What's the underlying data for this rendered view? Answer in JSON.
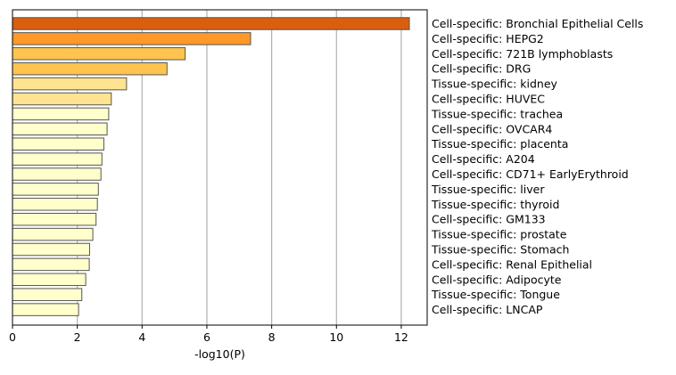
{
  "chart_data": {
    "type": "bar",
    "orientation": "horizontal",
    "title": "",
    "xlabel": "-log10(P)",
    "ylabel": "",
    "xlim": [
      0,
      12.8
    ],
    "xticks": [
      0,
      2,
      4,
      6,
      8,
      10,
      12
    ],
    "grid": "vertical",
    "categories": [
      "Cell-specific: Bronchial Epithelial Cells",
      "Cell-specific: HEPG2",
      "Cell-specific: 721B lymphoblasts",
      "Cell-specific: DRG",
      "Tissue-specific: kidney",
      "Cell-specific: HUVEC",
      "Tissue-specific: trachea",
      "Cell-specific: OVCAR4",
      "Tissue-specific: placenta",
      "Cell-specific: A204",
      "Cell-specific: CD71+ EarlyErythroid",
      "Tissue-specific: liver",
      "Tissue-specific: thyroid",
      "Cell-specific: GM133",
      "Tissue-specific: prostate",
      "Tissue-specific: Stomach",
      "Cell-specific: Renal Epithelial",
      "Cell-specific: Adipocyte",
      "Tissue-specific: Tongue",
      "Cell-specific: LNCAP"
    ],
    "values": [
      12.25,
      7.35,
      5.33,
      4.77,
      3.52,
      3.05,
      2.97,
      2.92,
      2.82,
      2.76,
      2.73,
      2.65,
      2.62,
      2.58,
      2.48,
      2.38,
      2.37,
      2.26,
      2.14,
      2.04
    ],
    "bar_colors": [
      "#d95f0e",
      "#fe9929",
      "#fec44f",
      "#fec44f",
      "#fee391",
      "#fee391",
      "#ffffcc",
      "#ffffcc",
      "#ffffcc",
      "#ffffcc",
      "#ffffcc",
      "#ffffcc",
      "#ffffcc",
      "#ffffcc",
      "#ffffcc",
      "#ffffcc",
      "#ffffcc",
      "#ffffcc",
      "#ffffcc",
      "#ffffcc"
    ],
    "bar_edge_color": "#555555",
    "grid_color": "#b0b0b0"
  }
}
